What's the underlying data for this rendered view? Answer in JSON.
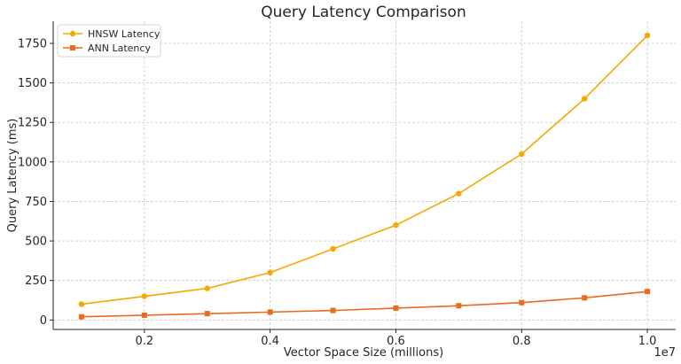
{
  "chart_data": {
    "type": "line",
    "title": "Query Latency Comparison",
    "xlabel": "Vector Space Size (millions)",
    "ylabel": "Query Latency (ms)",
    "x_offset_text": "1e7",
    "x": [
      1000000,
      2000000,
      3000000,
      4000000,
      5000000,
      6000000,
      7000000,
      8000000,
      9000000,
      10000000
    ],
    "xlim": [
      550000,
      10450000
    ],
    "ylim": [
      -60,
      1890
    ],
    "x_ticks": [
      2000000,
      4000000,
      6000000,
      8000000,
      10000000
    ],
    "x_tick_labels": [
      "0.2",
      "0.4",
      "0.6",
      "0.8",
      "1.0"
    ],
    "y_ticks": [
      0,
      250,
      500,
      750,
      1000,
      1250,
      1500,
      1750
    ],
    "y_tick_labels": [
      "0",
      "250",
      "500",
      "750",
      "1000",
      "1250",
      "1500",
      "1750"
    ],
    "grid": true,
    "legend_position": "top-left",
    "series": [
      {
        "name": "HNSW Latency",
        "color": "#f5a800",
        "marker": "circle",
        "values": [
          100,
          150,
          200,
          300,
          450,
          600,
          800,
          1050,
          1400,
          1800
        ]
      },
      {
        "name": "ANN Latency",
        "color": "#ea6a1e",
        "marker": "square",
        "values": [
          20,
          30,
          40,
          50,
          60,
          75,
          90,
          110,
          140,
          180
        ]
      }
    ]
  }
}
